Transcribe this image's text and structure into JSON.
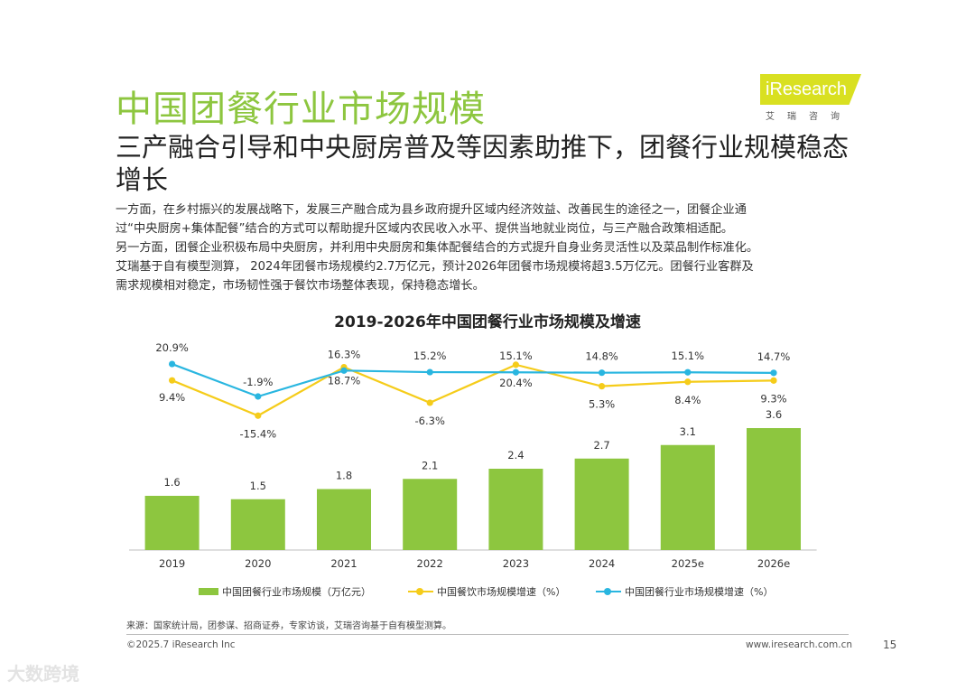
{
  "header": {
    "title": "中国团餐行业市场规模",
    "logo_text": "iResearch",
    "logo_subtext": "艾瑞咨询"
  },
  "subtitle": "三产融合引导和中央厨房普及等因素助推下，团餐行业规模稳态增长",
  "body_lines": [
    "一方面，在乡村振兴的发展战略下，发展三产融合成为县乡政府提升区域内经济效益、改善民生的途径之一，团餐企业通",
    "过“中央厨房+集体配餐”结合的方式可以帮助提升区域内农民收入水平、提供当地就业岗位，与三产融合政策相适配。",
    "另一方面，团餐企业积极布局中央厨房，并利用中央厨房和集体配餐结合的方式提升自身业务灵活性以及菜品制作标准化。",
    "艾瑞基于自有模型测算， 2024年团餐市场规模约2.7万亿元，预计2026年团餐市场规模将超3.5万亿元。团餐行业客群及",
    "需求规模相对稳定，市场韧性强于餐饮市场整体表现，保持稳态增长。"
  ],
  "chart_data": {
    "type": "bar",
    "title": "2019-2026年中国团餐行业市场规模及增速",
    "categories": [
      "2019",
      "2020",
      "2021",
      "2022",
      "2023",
      "2024",
      "2025e",
      "2026e"
    ],
    "series": [
      {
        "name": "中国团餐行业市场规模（万亿元）",
        "type": "bar",
        "color": "#8dc63f",
        "values": [
          1.6,
          1.5,
          1.8,
          2.1,
          2.4,
          2.7,
          3.1,
          3.6
        ],
        "labels": [
          "1.6",
          "1.5",
          "1.8",
          "2.1",
          "2.4",
          "2.7",
          "3.1",
          "3.6"
        ]
      },
      {
        "name": "中国餐饮市场规模增速（%）",
        "type": "line",
        "color": "#f5cc1a",
        "values": [
          9.4,
          -15.4,
          18.7,
          -6.3,
          20.4,
          5.3,
          8.4,
          9.3
        ],
        "labels": [
          "9.4%",
          "-15.4%",
          "18.7%",
          "-6.3%",
          "20.4%",
          "5.3%",
          "8.4%",
          "9.3%"
        ]
      },
      {
        "name": "中国团餐行业市场规模增速（%）",
        "type": "line",
        "color": "#29b6e0",
        "values": [
          20.9,
          -1.9,
          16.3,
          15.2,
          15.1,
          14.8,
          15.1,
          14.7
        ],
        "labels": [
          "20.9%",
          "-1.9%",
          "16.3%",
          "15.2%",
          "15.1%",
          "14.8%",
          "15.1%",
          "14.7%"
        ]
      }
    ]
  },
  "source": "来源：国家统计局，团参谋、招商证券，专家访谈，艾瑞咨询基于自有模型测算。",
  "footer": {
    "copyright": "©2025.7 iResearch Inc",
    "website": "www.iresearch.com.cn",
    "page_number": "15"
  },
  "watermark": "大数跨境"
}
